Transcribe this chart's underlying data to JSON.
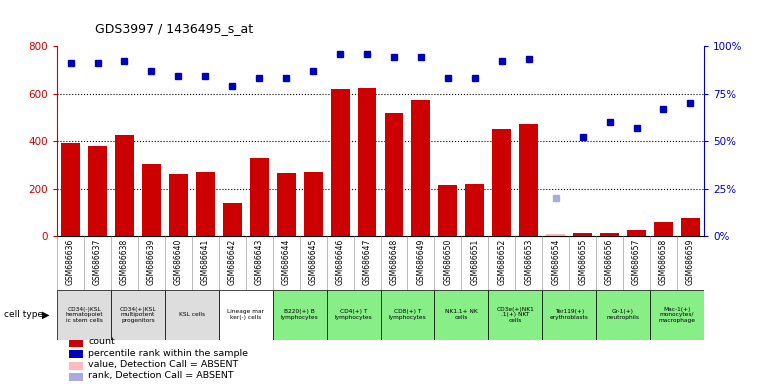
{
  "title": "GDS3997 / 1436495_s_at",
  "gsm_labels": [
    "GSM686636",
    "GSM686637",
    "GSM686638",
    "GSM686639",
    "GSM686640",
    "GSM686641",
    "GSM686642",
    "GSM686643",
    "GSM686644",
    "GSM686645",
    "GSM686646",
    "GSM686647",
    "GSM686648",
    "GSM686649",
    "GSM686650",
    "GSM686651",
    "GSM686652",
    "GSM686653",
    "GSM686654",
    "GSM686655",
    "GSM686656",
    "GSM686657",
    "GSM686658",
    "GSM686659"
  ],
  "counts": [
    390,
    380,
    425,
    305,
    260,
    270,
    140,
    330,
    265,
    270,
    620,
    625,
    520,
    575,
    215,
    220,
    450,
    470,
    10,
    15,
    15,
    25,
    60,
    75
  ],
  "percentile_ranks": [
    91,
    91,
    92,
    87,
    84,
    84,
    79,
    83,
    83,
    87,
    96,
    96,
    94,
    94,
    83,
    83,
    92,
    93,
    20,
    52,
    60,
    57,
    67,
    70
  ],
  "absent_idx": 18,
  "bar_color": "#cc0000",
  "absent_bar_color": "#ffbbbb",
  "dot_color": "#0000bb",
  "absent_dot_color": "#aaaadd",
  "grid_color": "#000000",
  "bg_color": "#ffffff",
  "ylim_left": [
    0,
    800
  ],
  "ylim_right": [
    0,
    100
  ],
  "yticks_left": [
    0,
    200,
    400,
    600,
    800
  ],
  "yticks_right": [
    0,
    25,
    50,
    75,
    100
  ],
  "ylabel_left_color": "#cc0000",
  "ylabel_right_color": "#0000bb",
  "cell_type_groups": [
    {
      "label": "CD34(-)KSL\nhematopoiet\nic stem cells",
      "bars": [
        0,
        1
      ],
      "color": "#dddddd"
    },
    {
      "label": "CD34(+)KSL\nmultipotent\nprogenitors",
      "bars": [
        2,
        3
      ],
      "color": "#dddddd"
    },
    {
      "label": "KSL cells",
      "bars": [
        4,
        5
      ],
      "color": "#dddddd"
    },
    {
      "label": "Lineage mar\nker(-) cells",
      "bars": [
        6,
        7
      ],
      "color": "#ffffff"
    },
    {
      "label": "B220(+) B\nlymphocytes",
      "bars": [
        8,
        9
      ],
      "color": "#88ee88"
    },
    {
      "label": "CD4(+) T\nlymphocytes",
      "bars": [
        10,
        11
      ],
      "color": "#88ee88"
    },
    {
      "label": "CD8(+) T\nlymphocytes",
      "bars": [
        12,
        13
      ],
      "color": "#88ee88"
    },
    {
      "label": "NK1.1+ NK\ncells",
      "bars": [
        14,
        15
      ],
      "color": "#88ee88"
    },
    {
      "label": "CD3e(+)NK1\n.1(+) NKT\ncells",
      "bars": [
        16,
        17
      ],
      "color": "#88ee88"
    },
    {
      "label": "Ter119(+)\nerythroblasts",
      "bars": [
        18,
        19
      ],
      "color": "#88ee88"
    },
    {
      "label": "Gr-1(+)\nneutrophils",
      "bars": [
        20,
        21
      ],
      "color": "#88ee88"
    },
    {
      "label": "Mac-1(+)\nmonocytes/\nmacrophage",
      "bars": [
        22,
        23
      ],
      "color": "#88ee88"
    }
  ],
  "legend_items": [
    {
      "color": "#cc0000",
      "label": "count"
    },
    {
      "color": "#0000bb",
      "label": "percentile rank within the sample"
    },
    {
      "color": "#ffbbbb",
      "label": "value, Detection Call = ABSENT"
    },
    {
      "color": "#aaaadd",
      "label": "rank, Detection Call = ABSENT"
    }
  ]
}
